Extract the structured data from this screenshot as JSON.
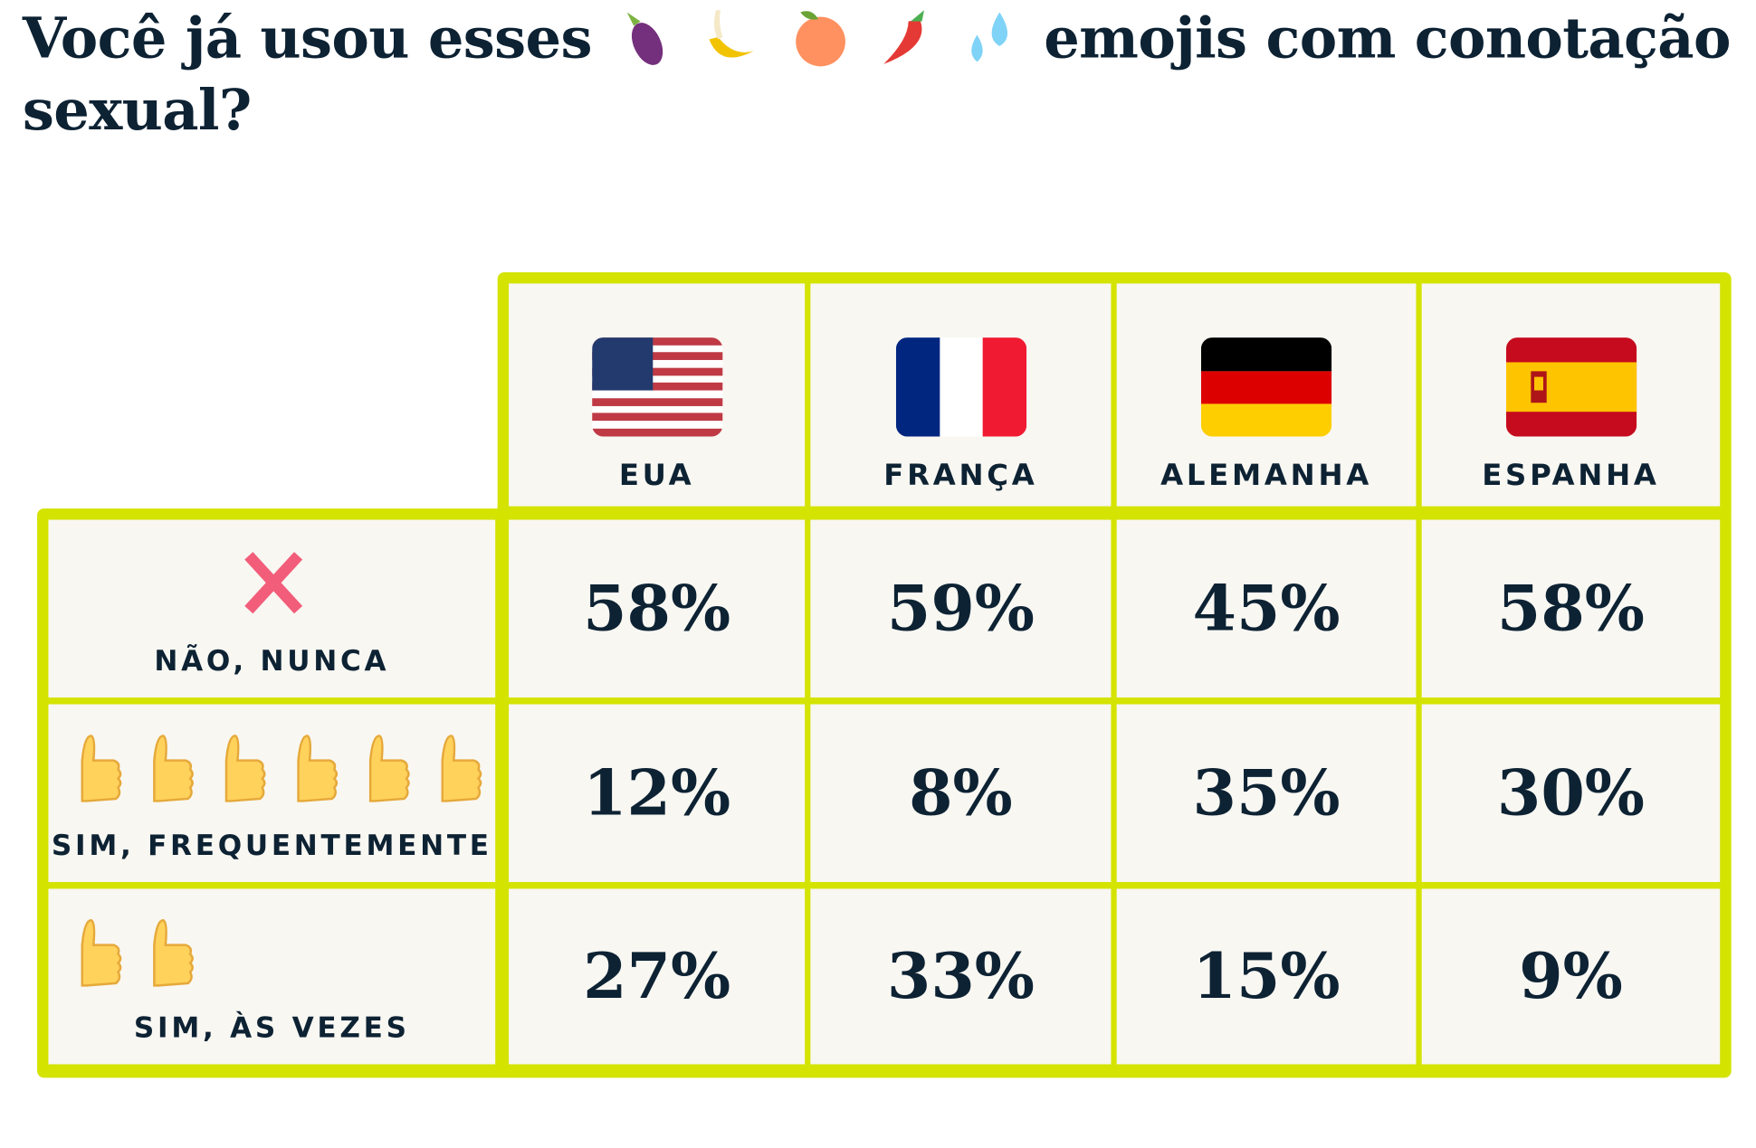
{
  "title": {
    "before": "Você já usou esses",
    "after": "emojis com conotação sexual?",
    "emojis": [
      "eggplant-icon",
      "banana-icon",
      "peach-icon",
      "hot-pepper-icon",
      "sweat-droplets-icon"
    ]
  },
  "countries": [
    {
      "name": "EUA",
      "flag": "us-flag"
    },
    {
      "name": "FRANÇA",
      "flag": "france-flag"
    },
    {
      "name": "ALEMANHA",
      "flag": "germany-flag"
    },
    {
      "name": "ESPANHA",
      "flag": "spain-flag"
    }
  ],
  "rows": [
    {
      "label": "NÃO, NUNCA",
      "icon": "cross-mark-icon",
      "values": [
        "58%",
        "59%",
        "45%",
        "58%"
      ]
    },
    {
      "label": "SIM, FREQUENTEMENTE",
      "icon": "thumbs-up-icon",
      "icon_count": 6,
      "values": [
        "12%",
        "8%",
        "35%",
        "30%"
      ]
    },
    {
      "label": "SIM, ÀS VEZES",
      "icon": "thumbs-up-icon",
      "icon_count": 2,
      "values": [
        "27%",
        "33%",
        "15%",
        "9%"
      ]
    }
  ],
  "colors": {
    "grid": "#d4e300",
    "cell": "#f8f7f2",
    "text": "#0d2233",
    "cross": "#f25d7a"
  }
}
